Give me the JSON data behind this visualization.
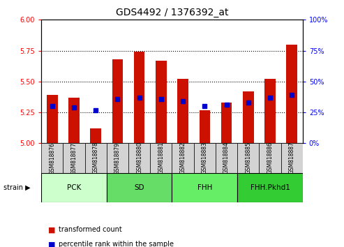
{
  "title": "GDS4492 / 1376392_at",
  "samples": [
    "GSM818876",
    "GSM818877",
    "GSM818878",
    "GSM818879",
    "GSM818880",
    "GSM818881",
    "GSM818882",
    "GSM818883",
    "GSM818884",
    "GSM818885",
    "GSM818886",
    "GSM818887"
  ],
  "transformed_count": [
    5.39,
    5.37,
    5.12,
    5.68,
    5.74,
    5.67,
    5.52,
    5.27,
    5.33,
    5.42,
    5.52,
    5.8
  ],
  "percentile_rank": [
    30,
    29,
    27,
    36,
    37,
    36,
    34,
    30,
    31,
    33,
    37,
    39
  ],
  "ylim_left": [
    5.0,
    6.0
  ],
  "ylim_right": [
    0,
    100
  ],
  "yticks_left": [
    5.0,
    5.25,
    5.5,
    5.75,
    6.0
  ],
  "yticks_right": [
    0,
    25,
    50,
    75,
    100
  ],
  "bar_color": "#cc1100",
  "dot_color": "#0000cc",
  "grid_color": "#000000",
  "strain_groups": [
    {
      "label": "PCK",
      "start": 0,
      "end": 3,
      "color": "#ccffcc"
    },
    {
      "label": "SD",
      "start": 3,
      "end": 6,
      "color": "#66dd66"
    },
    {
      "label": "FHH",
      "start": 6,
      "end": 9,
      "color": "#66ee66"
    },
    {
      "label": "FHH.Pkhd1",
      "start": 9,
      "end": 12,
      "color": "#33cc33"
    }
  ],
  "legend_items": [
    {
      "label": "transformed count",
      "color": "#cc1100"
    },
    {
      "label": "percentile rank within the sample",
      "color": "#0000cc"
    }
  ],
  "xlabel": "strain",
  "bar_width": 0.5
}
